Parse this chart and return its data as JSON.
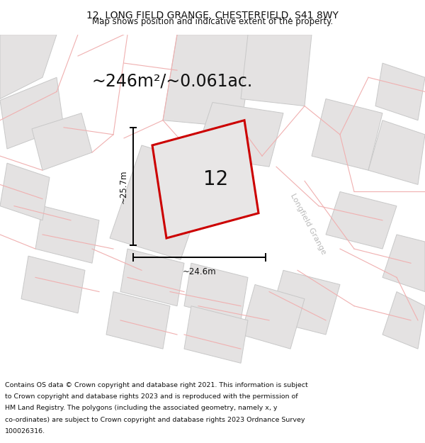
{
  "title": "12, LONG FIELD GRANGE, CHESTERFIELD, S41 8WY",
  "subtitle": "Map shows position and indicative extent of the property.",
  "area_text": "~246m²/~0.061ac.",
  "label_number": "12",
  "dim_width": "~24.6m",
  "dim_height": "~25.7m",
  "street_label": "Longfield Grange",
  "bg_color": "#ffffff",
  "plot_fill": "#e8e6e6",
  "plot_edge": "#cc0000",
  "neighbor_fill": "#e4e2e2",
  "neighbor_edge": "#e8a0a0",
  "road_outline": "#f0b0b0",
  "annotation_color": "#000000",
  "street_label_color": "#bbbbbb",
  "figsize": [
    6.0,
    6.25
  ],
  "dpi": 100,
  "title_fontsize": 10,
  "subtitle_fontsize": 8.5,
  "area_fontsize": 17,
  "label_fontsize": 20,
  "dim_fontsize": 8.5,
  "street_fontsize": 8,
  "footer_fontsize": 6.8,
  "footer_lines": [
    "Contains OS data © Crown copyright and database right 2021. This information is subject",
    "to Crown copyright and database rights 2023 and is reproduced with the permission of",
    "HM Land Registry. The polygons (including the associated geometry, namely x, y",
    "co-ordinates) are subject to Crown copyright and database rights 2023 Ordnance Survey",
    "100026316."
  ]
}
